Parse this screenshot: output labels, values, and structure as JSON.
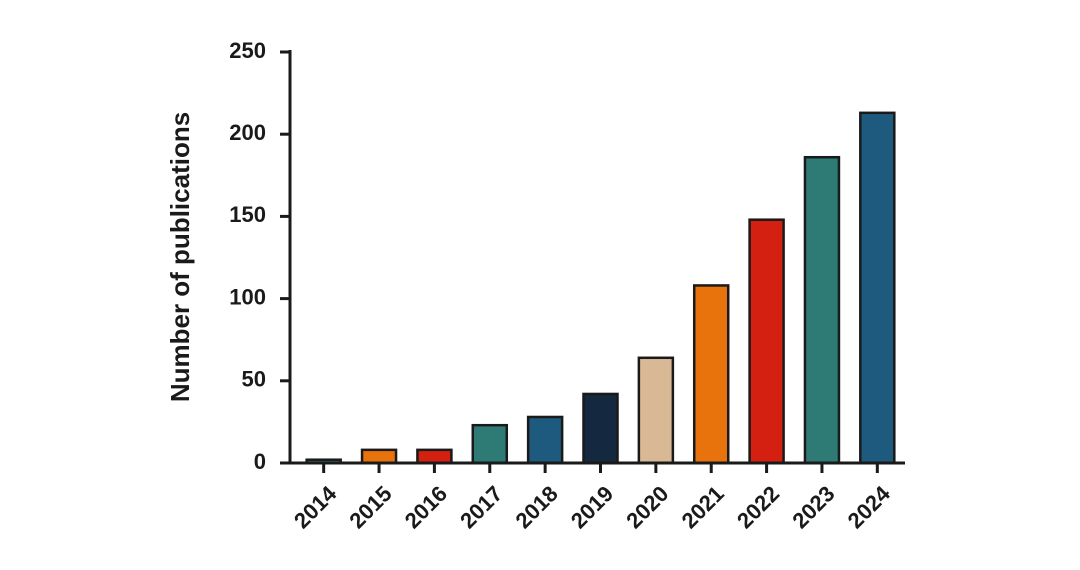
{
  "chart_data": {
    "type": "bar",
    "y_label": "Number of publications",
    "categories": [
      "2014",
      "2015",
      "2016",
      "2017",
      "2018",
      "2019",
      "2020",
      "2021",
      "2022",
      "2023",
      "2024"
    ],
    "values": [
      2,
      8,
      8,
      23,
      28,
      42,
      64,
      108,
      148,
      186,
      213
    ],
    "colors": [
      "#2e7b76",
      "#e8720c",
      "#d42010",
      "#2e7b76",
      "#1e5a7e",
      "#14283f",
      "#d9b895",
      "#e8720c",
      "#d42010",
      "#2e7b76",
      "#1e5a7e"
    ],
    "ylim": [
      0,
      250
    ],
    "yticks": [
      0,
      50,
      100,
      150,
      200,
      250
    ],
    "grid": false
  }
}
